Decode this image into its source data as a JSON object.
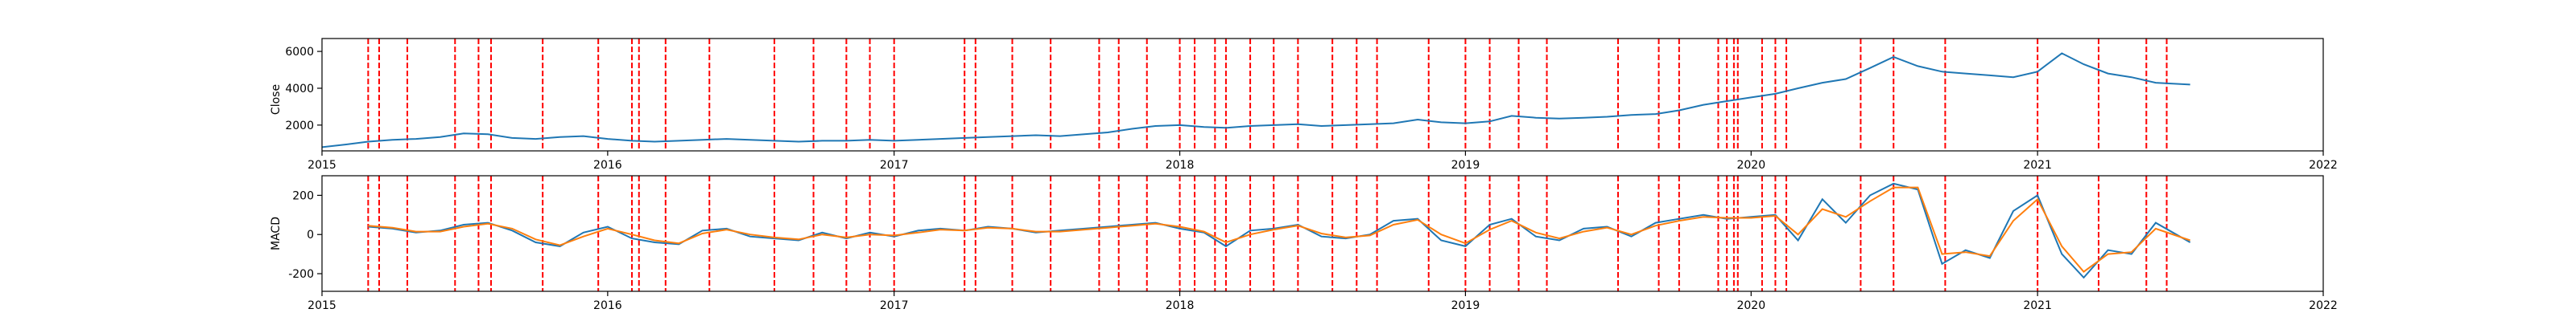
{
  "colors": {
    "close_line": "#1f77b4",
    "macd_line": "#1f77b4",
    "signal_line": "#ff7f0e",
    "event_line": "#ff0000",
    "axes": "#000000",
    "background": "#ffffff"
  },
  "chart_data": [
    {
      "type": "line",
      "ylabel": "Close",
      "xlabel": "",
      "xlim": [
        "2015-01-01",
        "2022-01-01"
      ],
      "ylim": [
        600,
        6700
      ],
      "x_ticks": [
        "2015",
        "2016",
        "2017",
        "2018",
        "2019",
        "2020",
        "2021",
        "2022"
      ],
      "y_ticks": [
        2000,
        4000,
        6000
      ],
      "grid": false,
      "series": [
        {
          "x": [
            "2015-01-01",
            "2015-02-01",
            "2015-03-01",
            "2015-04-01",
            "2015-05-01",
            "2015-06-01",
            "2015-07-01",
            "2015-08-01",
            "2015-09-01",
            "2015-10-01",
            "2015-11-01",
            "2015-12-01",
            "2016-01-01",
            "2016-02-01",
            "2016-03-01",
            "2016-04-01",
            "2016-05-01",
            "2016-06-01",
            "2016-07-01",
            "2016-08-01",
            "2016-09-01",
            "2016-10-01",
            "2016-11-01",
            "2016-12-01",
            "2017-01-01",
            "2017-02-01",
            "2017-03-01",
            "2017-04-01",
            "2017-05-01",
            "2017-06-01",
            "2017-07-01",
            "2017-08-01",
            "2017-09-01",
            "2017-10-01",
            "2017-11-01",
            "2017-12-01",
            "2018-01-01",
            "2018-02-01",
            "2018-03-01",
            "2018-04-01",
            "2018-05-01",
            "2018-06-01",
            "2018-07-01",
            "2018-08-01",
            "2018-09-01",
            "2018-10-01",
            "2018-11-01",
            "2018-12-01",
            "2019-01-01",
            "2019-02-01",
            "2019-03-01",
            "2019-04-01",
            "2019-05-01",
            "2019-06-01",
            "2019-07-01",
            "2019-08-01",
            "2019-09-01",
            "2019-10-01",
            "2019-11-01",
            "2019-12-01",
            "2020-01-01",
            "2020-02-01",
            "2020-03-01",
            "2020-04-01",
            "2020-05-01",
            "2020-06-01",
            "2020-07-01",
            "2020-08-01",
            "2020-09-01",
            "2020-10-01",
            "2020-11-01",
            "2020-12-01",
            "2021-01-01",
            "2021-02-01",
            "2021-03-01",
            "2021-04-01",
            "2021-05-01",
            "2021-06-01",
            "2021-07-15"
          ],
          "values": [
            800,
            950,
            1100,
            1200,
            1250,
            1350,
            1550,
            1500,
            1300,
            1250,
            1350,
            1400,
            1250,
            1150,
            1100,
            1150,
            1200,
            1250,
            1200,
            1150,
            1100,
            1150,
            1150,
            1200,
            1150,
            1200,
            1250,
            1300,
            1350,
            1400,
            1450,
            1400,
            1500,
            1600,
            1800,
            1950,
            2000,
            1900,
            1850,
            1950,
            2000,
            2050,
            1950,
            2000,
            2050,
            2100,
            2300,
            2150,
            2100,
            2200,
            2500,
            2400,
            2350,
            2400,
            2450,
            2550,
            2600,
            2800,
            3100,
            3300,
            3500,
            3700,
            4000,
            4300,
            4500,
            5100,
            5700,
            5200,
            4900,
            4800,
            4700,
            4600,
            4900,
            5900,
            5300,
            4800,
            4600,
            4300,
            4200
          ]
        }
      ]
    },
    {
      "type": "line",
      "ylabel": "MACD",
      "xlabel": "",
      "xlim": [
        "2015-01-01",
        "2022-01-01"
      ],
      "ylim": [
        -290,
        300
      ],
      "x_ticks": [
        "2015",
        "2016",
        "2017",
        "2018",
        "2019",
        "2020",
        "2021",
        "2022"
      ],
      "y_ticks": [
        -200,
        0,
        200
      ],
      "grid": false,
      "series": [
        {
          "x": [
            "2015-03-01",
            "2015-04-01",
            "2015-05-01",
            "2015-06-01",
            "2015-07-01",
            "2015-08-01",
            "2015-09-01",
            "2015-10-01",
            "2015-11-01",
            "2015-12-01",
            "2016-01-01",
            "2016-02-01",
            "2016-03-01",
            "2016-04-01",
            "2016-05-01",
            "2016-06-01",
            "2016-07-01",
            "2016-08-01",
            "2016-09-01",
            "2016-10-01",
            "2016-11-01",
            "2016-12-01",
            "2017-01-01",
            "2017-02-01",
            "2017-03-01",
            "2017-04-01",
            "2017-05-01",
            "2017-06-01",
            "2017-07-01",
            "2017-08-01",
            "2017-09-01",
            "2017-10-01",
            "2017-11-01",
            "2017-12-01",
            "2018-01-01",
            "2018-02-01",
            "2018-03-01",
            "2018-04-01",
            "2018-05-01",
            "2018-06-01",
            "2018-07-01",
            "2018-08-01",
            "2018-09-01",
            "2018-10-01",
            "2018-11-01",
            "2018-12-01",
            "2019-01-01",
            "2019-02-01",
            "2019-03-01",
            "2019-04-01",
            "2019-05-01",
            "2019-06-01",
            "2019-07-01",
            "2019-08-01",
            "2019-09-01",
            "2019-10-01",
            "2019-11-01",
            "2019-12-01",
            "2020-01-01",
            "2020-02-01",
            "2020-03-01",
            "2020-04-01",
            "2020-05-01",
            "2020-06-01",
            "2020-07-01",
            "2020-08-01",
            "2020-09-01",
            "2020-10-01",
            "2020-11-01",
            "2020-12-01",
            "2021-01-01",
            "2021-02-01",
            "2021-03-01",
            "2021-04-01",
            "2021-05-01",
            "2021-06-01",
            "2021-07-15"
          ],
          "values": [
            40,
            30,
            10,
            20,
            50,
            60,
            20,
            -40,
            -60,
            10,
            40,
            -20,
            -40,
            -50,
            20,
            30,
            -10,
            -20,
            -30,
            10,
            -20,
            10,
            -10,
            20,
            30,
            20,
            40,
            30,
            10,
            20,
            30,
            40,
            50,
            60,
            30,
            10,
            -60,
            20,
            30,
            50,
            -10,
            -20,
            0,
            70,
            80,
            -30,
            -60,
            50,
            80,
            -10,
            -30,
            30,
            40,
            -10,
            60,
            80,
            100,
            80,
            90,
            100,
            -30,
            180,
            60,
            200,
            260,
            230,
            -150,
            -80,
            -120,
            120,
            200,
            -100,
            -220,
            -80,
            -100,
            60,
            -40
          ],
          "name": ""
        },
        {
          "x": [
            "2015-03-01",
            "2015-04-01",
            "2015-05-01",
            "2015-06-01",
            "2015-07-01",
            "2015-08-01",
            "2015-09-01",
            "2015-10-01",
            "2015-11-01",
            "2015-12-01",
            "2016-01-01",
            "2016-02-01",
            "2016-03-01",
            "2016-04-01",
            "2016-05-01",
            "2016-06-01",
            "2016-07-01",
            "2016-08-01",
            "2016-09-01",
            "2016-10-01",
            "2016-11-01",
            "2016-12-01",
            "2017-01-01",
            "2017-02-01",
            "2017-03-01",
            "2017-04-01",
            "2017-05-01",
            "2017-06-01",
            "2017-07-01",
            "2017-08-01",
            "2017-09-01",
            "2017-10-01",
            "2017-11-01",
            "2017-12-01",
            "2018-01-01",
            "2018-02-01",
            "2018-03-01",
            "2018-04-01",
            "2018-05-01",
            "2018-06-01",
            "2018-07-01",
            "2018-08-01",
            "2018-09-01",
            "2018-10-01",
            "2018-11-01",
            "2018-12-01",
            "2019-01-01",
            "2019-02-01",
            "2019-03-01",
            "2019-04-01",
            "2019-05-01",
            "2019-06-01",
            "2019-07-01",
            "2019-08-01",
            "2019-09-01",
            "2019-10-01",
            "2019-11-01",
            "2019-12-01",
            "2020-01-01",
            "2020-02-01",
            "2020-03-01",
            "2020-04-01",
            "2020-05-01",
            "2020-06-01",
            "2020-07-01",
            "2020-08-01",
            "2020-09-01",
            "2020-10-01",
            "2020-11-01",
            "2020-12-01",
            "2021-01-01",
            "2021-02-01",
            "2021-03-01",
            "2021-04-01",
            "2021-05-01",
            "2021-06-01",
            "2021-07-15"
          ],
          "values": [
            45,
            35,
            15,
            15,
            40,
            55,
            30,
            -25,
            -55,
            -10,
            30,
            0,
            -30,
            -45,
            5,
            25,
            0,
            -15,
            -25,
            0,
            -15,
            0,
            -5,
            10,
            25,
            20,
            35,
            30,
            15,
            15,
            25,
            35,
            45,
            55,
            40,
            15,
            -40,
            0,
            25,
            45,
            5,
            -15,
            -5,
            50,
            75,
            0,
            -45,
            25,
            70,
            10,
            -20,
            15,
            35,
            0,
            45,
            70,
            90,
            85,
            85,
            95,
            0,
            130,
            90,
            170,
            240,
            240,
            -100,
            -90,
            -110,
            70,
            180,
            -60,
            -190,
            -100,
            -90,
            30,
            -30
          ],
          "name": ""
        }
      ]
    }
  ],
  "event_dates": [
    "2015-03-01",
    "2015-03-15",
    "2015-04-20",
    "2015-06-20",
    "2015-07-20",
    "2015-08-05",
    "2015-10-10",
    "2015-12-20",
    "2016-02-01",
    "2016-02-10",
    "2016-03-15",
    "2016-05-10",
    "2016-08-01",
    "2016-09-20",
    "2016-11-01",
    "2016-12-01",
    "2017-01-01",
    "2017-04-01",
    "2017-04-15",
    "2017-06-01",
    "2017-07-20",
    "2017-09-20",
    "2017-10-15",
    "2017-11-20",
    "2018-01-01",
    "2018-01-20",
    "2018-02-15",
    "2018-03-01",
    "2018-04-01",
    "2018-05-01",
    "2018-06-01",
    "2018-07-15",
    "2018-08-15",
    "2018-09-10",
    "2018-11-15",
    "2019-01-01",
    "2019-02-01",
    "2019-03-10",
    "2019-04-15",
    "2019-07-15",
    "2019-09-05",
    "2019-10-01",
    "2019-11-20",
    "2019-12-01",
    "2019-12-10",
    "2019-12-15",
    "2020-01-15",
    "2020-02-01",
    "2020-02-15",
    "2020-05-20",
    "2020-07-01",
    "2020-09-05",
    "2021-01-01",
    "2021-03-20",
    "2021-05-20",
    "2021-06-15"
  ]
}
